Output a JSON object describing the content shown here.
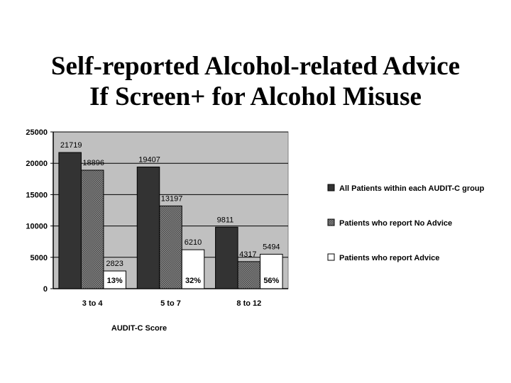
{
  "title_lines": [
    "Self-reported Alcohol-related Advice",
    "If Screen+ for Alcohol Misuse"
  ],
  "chart_data": {
    "type": "bar",
    "categories": [
      "3 to 4",
      "5 to 7",
      "8 to 12"
    ],
    "xlabel": "AUDIT-C Score",
    "ylabel": "",
    "ylim": [
      0,
      25000
    ],
    "yticks": [
      0,
      5000,
      10000,
      15000,
      20000,
      25000
    ],
    "grid": true,
    "legend_position": "right",
    "series": [
      {
        "name": "All Patients within each AUDIT-C group",
        "values": [
          21719,
          19407,
          9811
        ],
        "color": "#333333",
        "pattern": "solid"
      },
      {
        "name": "Patients who report No Advice",
        "values": [
          18896,
          13197,
          4317
        ],
        "color": "#707070",
        "pattern": "hatched"
      },
      {
        "name": "Patients who report Advice",
        "values": [
          2823,
          6210,
          5494
        ],
        "color": "#ffffff",
        "pattern": "none"
      }
    ],
    "annotations": [
      "13%",
      "32%",
      "56%"
    ],
    "plot_background": "#c0c0c0"
  }
}
